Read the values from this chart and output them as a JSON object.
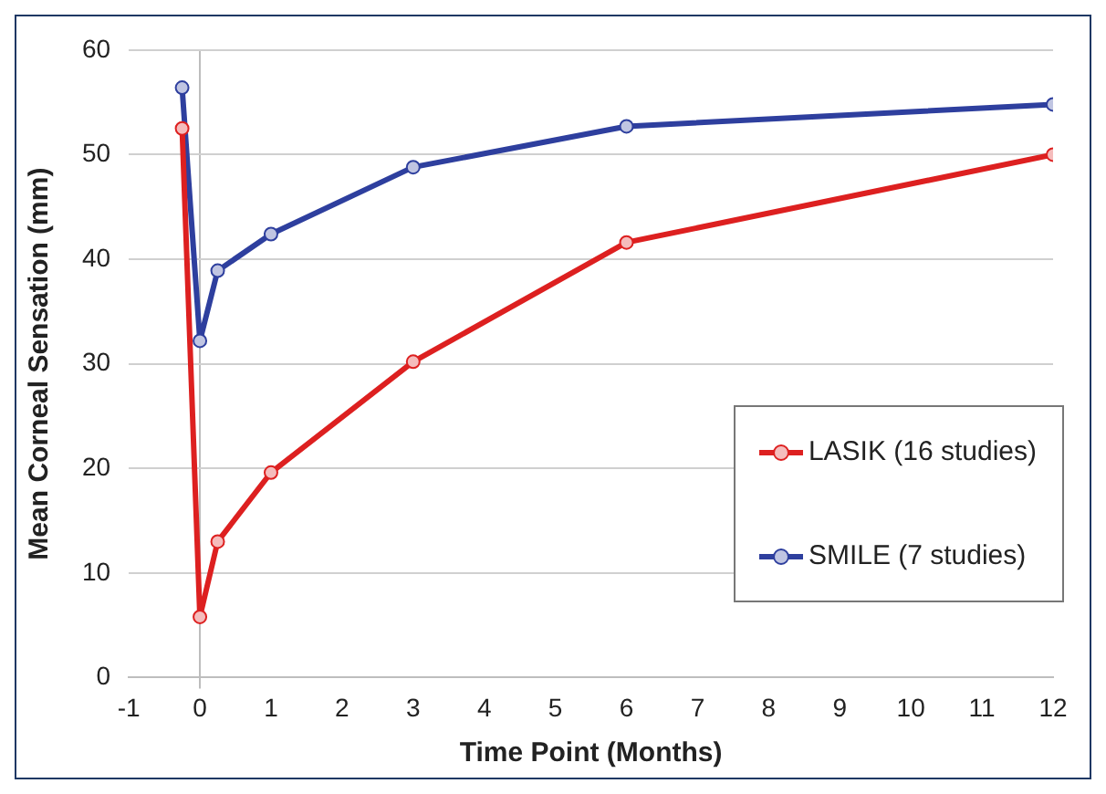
{
  "chart_data": {
    "type": "line",
    "xlabel": "Time Point (Months)",
    "ylabel": "Mean Corneal Sensation (mm)",
    "x": [
      -0.25,
      0,
      0.25,
      1,
      3,
      6,
      12
    ],
    "series": [
      {
        "name": "LASIK (16 studies)",
        "color": "#dd2020",
        "values": [
          52.5,
          5.8,
          13,
          19.6,
          30.2,
          41.6,
          50.0
        ]
      },
      {
        "name": "SMILE (7 studies)",
        "color": "#2e3f9e",
        "values": [
          56.4,
          32.2,
          38.9,
          42.4,
          48.8,
          52.7,
          54.8
        ]
      }
    ],
    "xlim": [
      -1,
      12
    ],
    "xticks": [
      -1,
      0,
      1,
      2,
      3,
      4,
      5,
      6,
      7,
      8,
      9,
      10,
      11,
      12
    ],
    "ylim": [
      0,
      60
    ],
    "yticks": [
      0,
      10,
      20,
      30,
      40,
      50,
      60
    ],
    "grid": "y",
    "legend": "right",
    "marker": "circle",
    "line_style": "solid"
  }
}
